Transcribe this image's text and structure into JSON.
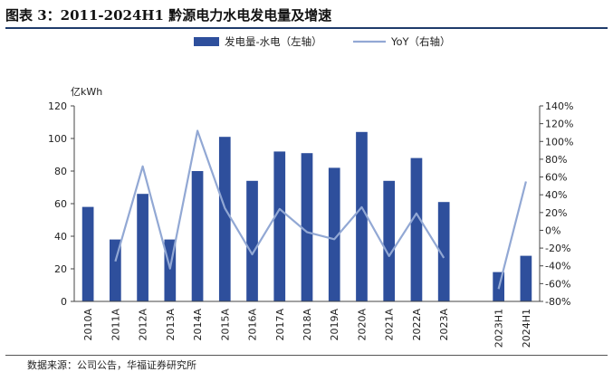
{
  "title": "图表 3：2011-2024H1 黔源电力水电发电量及增速",
  "source": "数据来源：公司公告，华福证券研究所",
  "colors": {
    "bar": "#2e4f9c",
    "line": "#92a8d4",
    "rule": "#1f3b6b"
  },
  "chart_data": {
    "type": "bar",
    "categories": [
      "2010A",
      "2011A",
      "2012A",
      "2013A",
      "2014A",
      "2015A",
      "2016A",
      "2017A",
      "2018A",
      "2019A",
      "2020A",
      "2021A",
      "2022A",
      "2023A",
      "",
      "2023H1",
      "2024H1"
    ],
    "series": [
      {
        "name": "发电量-水电（左轴）",
        "axis": "left",
        "type": "bar",
        "values": [
          58,
          38,
          66,
          38,
          80,
          101,
          74,
          92,
          91,
          82,
          104,
          74,
          88,
          61,
          null,
          18,
          28
        ]
      },
      {
        "name": "YoY（右轴）",
        "axis": "right",
        "type": "line",
        "values": [
          null,
          -35,
          72,
          -43,
          112,
          25,
          -27,
          24,
          -2,
          -10,
          26,
          -29,
          19,
          -31,
          null,
          -66,
          55
        ]
      }
    ],
    "left_axis": {
      "unit": "亿kWh",
      "ylim": [
        0,
        120
      ],
      "ticks": [
        0,
        20,
        40,
        60,
        80,
        100,
        120
      ]
    },
    "right_axis": {
      "ylim": [
        -80,
        140
      ],
      "ticks": [
        -80,
        -60,
        -40,
        -20,
        0,
        20,
        40,
        60,
        80,
        100,
        120,
        140
      ],
      "tick_labels": [
        "-80%",
        "-60%",
        "-40%",
        "-20%",
        "0%",
        "20%",
        "40%",
        "60%",
        "80%",
        "100%",
        "120%",
        "140%"
      ]
    },
    "legend": {
      "placement": "top-center",
      "entries": [
        "发电量-水电（左轴）",
        "YoY（右轴）"
      ]
    },
    "grid": false
  }
}
